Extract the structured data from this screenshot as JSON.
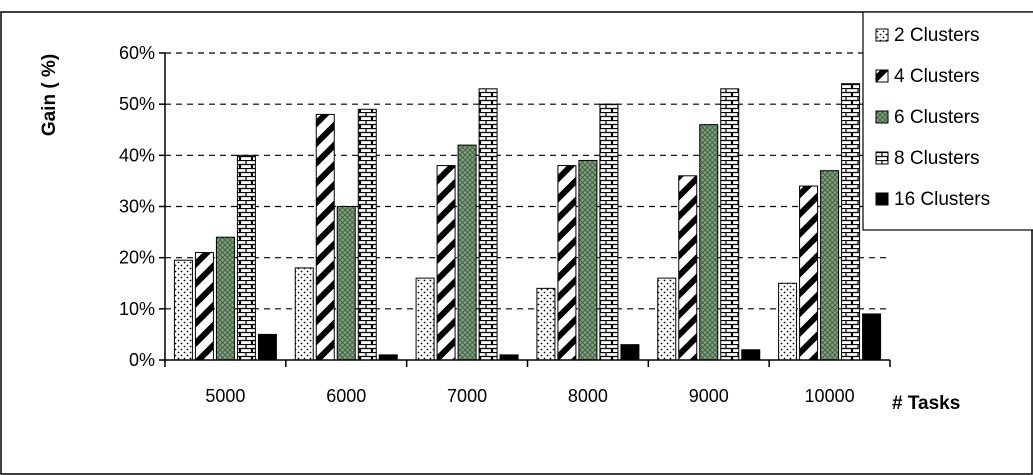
{
  "chart_data": {
    "type": "bar",
    "title": "",
    "xlabel": "# Tasks",
    "ylabel": "Gain ( %)",
    "categories": [
      "5000",
      "6000",
      "7000",
      "8000",
      "9000",
      "10000"
    ],
    "y_ticks": [
      "0%",
      "10%",
      "20%",
      "30%",
      "40%",
      "50%",
      "60%"
    ],
    "ylim": [
      0,
      60
    ],
    "grid": "horizontal dashed",
    "legend_position": "top-right",
    "series": [
      {
        "name": "2 Clusters",
        "pattern": "dots",
        "values": [
          19.5,
          18,
          16,
          14,
          16,
          15
        ]
      },
      {
        "name": "4 Clusters",
        "pattern": "diagonal",
        "values": [
          21,
          48,
          38,
          38,
          36,
          34
        ]
      },
      {
        "name": "6 Clusters",
        "pattern": "crosshatch",
        "values": [
          24,
          30,
          42,
          39,
          46,
          37
        ]
      },
      {
        "name": "8 Clusters",
        "pattern": "brick",
        "values": [
          40,
          49,
          53,
          50,
          53,
          54
        ]
      },
      {
        "name": "16 Clusters",
        "pattern": "solid",
        "values": [
          5,
          1,
          1,
          3,
          2,
          9
        ]
      }
    ],
    "colors": {
      "cluster6": "#7f9f7f",
      "solid": "#000000"
    }
  }
}
